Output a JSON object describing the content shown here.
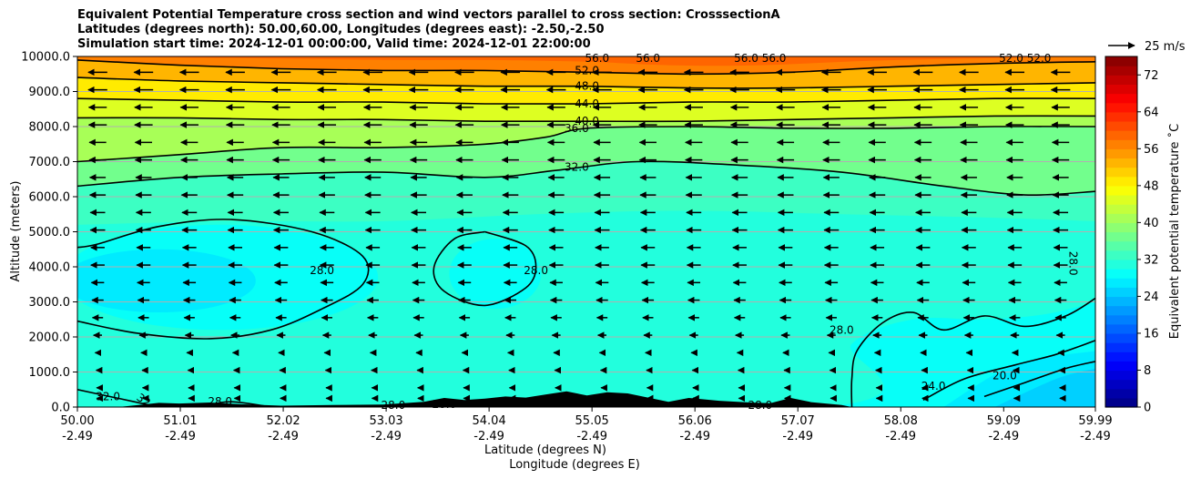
{
  "title_lines": [
    "Equivalent Potential Temperature cross section and wind vectors parallel to cross section: CrosssectionA",
    "Latitudes (degrees north): 50.00,60.00, Longitudes (degrees east): -2.50,-2.50",
    "Simulation start time: 2024-12-01 00:00:00, Valid time: 2024-12-01 22:00:00"
  ],
  "chart_data": {
    "type": "heatmap",
    "xlabel": "Latitude (degrees N)",
    "xlabel2": "Longitude (degrees E)",
    "ylabel": "Altitude (meters)",
    "colorbar_label": "Equivalent potential temperature ˚C",
    "x_ticks": [
      {
        "lat": 50.0,
        "lat_label": "50.00",
        "lon_label": "-2.49"
      },
      {
        "lat": 51.01,
        "lat_label": "51.01",
        "lon_label": "-2.49"
      },
      {
        "lat": 52.02,
        "lat_label": "52.02",
        "lon_label": "-2.49"
      },
      {
        "lat": 53.03,
        "lat_label": "53.03",
        "lon_label": "-2.49"
      },
      {
        "lat": 54.04,
        "lat_label": "54.04",
        "lon_label": "-2.49"
      },
      {
        "lat": 55.05,
        "lat_label": "55.05",
        "lon_label": "-2.49"
      },
      {
        "lat": 56.06,
        "lat_label": "56.06",
        "lon_label": "-2.49"
      },
      {
        "lat": 57.07,
        "lat_label": "57.07",
        "lon_label": "-2.49"
      },
      {
        "lat": 58.08,
        "lat_label": "58.08",
        "lon_label": "-2.49"
      },
      {
        "lat": 59.09,
        "lat_label": "59.09",
        "lon_label": "-2.49"
      },
      {
        "lat": 59.99,
        "lat_label": "59.99",
        "lon_label": "-2.49"
      }
    ],
    "xlim": [
      50.0,
      59.99
    ],
    "y_ticks": [
      0,
      1000,
      2000,
      3000,
      4000,
      5000,
      6000,
      7000,
      8000,
      9000,
      10000
    ],
    "y_tick_labels": [
      "0.0",
      "1000.0",
      "2000.0",
      "3000.0",
      "4000.0",
      "5000.0",
      "6000.0",
      "7000.0",
      "8000.0",
      "9000.0",
      "10000.0"
    ],
    "ylim": [
      0,
      10000
    ],
    "grid": "horizontal",
    "colorbar": {
      "min": 0,
      "max": 76,
      "step": 2,
      "ticks": [
        0,
        8,
        16,
        24,
        32,
        40,
        48,
        56,
        64,
        72
      ],
      "colormap": "jet"
    },
    "fill_bands": [
      {
        "level": 56,
        "lat": [
          50.0,
          51.6,
          53.2,
          54.0,
          55.0,
          55.8,
          56.7,
          57.8,
          59.0,
          59.99
        ],
        "alt": [
          10000,
          9950,
          9900,
          9900,
          9850,
          9750,
          9750,
          9880,
          9950,
          10000
        ]
      },
      {
        "level": 52,
        "lat": [
          50.0,
          51.0,
          52.0,
          53.0,
          54.0,
          55.0,
          56.0,
          57.0,
          58.0,
          59.0,
          59.99
        ],
        "alt": [
          9900,
          9750,
          9650,
          9600,
          9600,
          9550,
          9500,
          9550,
          9700,
          9800,
          9850
        ]
      },
      {
        "level": 48,
        "lat": [
          50.0,
          51.0,
          52.0,
          53.0,
          54.0,
          55.0,
          56.0,
          57.0,
          58.0,
          59.0,
          59.99
        ],
        "alt": [
          9400,
          9300,
          9250,
          9200,
          9150,
          9150,
          9100,
          9100,
          9150,
          9200,
          9250
        ]
      },
      {
        "level": 44,
        "lat": [
          50.0,
          51.0,
          52.0,
          53.0,
          54.0,
          55.0,
          56.0,
          57.0,
          58.0,
          59.0,
          59.99
        ],
        "alt": [
          8800,
          8750,
          8700,
          8700,
          8650,
          8650,
          8700,
          8700,
          8750,
          8800,
          8800
        ]
      },
      {
        "level": 40,
        "lat": [
          50.0,
          51.0,
          52.0,
          53.0,
          54.0,
          55.0,
          56.0,
          57.0,
          58.0,
          59.0,
          59.99
        ],
        "alt": [
          8250,
          8250,
          8200,
          8200,
          8150,
          8150,
          8150,
          8200,
          8250,
          8300,
          8300
        ]
      },
      {
        "level": 36,
        "lat": [
          50.0,
          51.0,
          52.0,
          53.0,
          54.0,
          54.6,
          55.0,
          56.0,
          57.0,
          58.0,
          59.0,
          59.99
        ],
        "alt": [
          7000,
          7200,
          7400,
          7400,
          7500,
          7700,
          7950,
          8000,
          7950,
          7950,
          8000,
          8000
        ]
      },
      {
        "level": 32,
        "lat": [
          50.0,
          51.0,
          52.0,
          53.0,
          54.0,
          54.7,
          55.5,
          56.5,
          57.5,
          58.5,
          59.3,
          59.99
        ],
        "alt": [
          6300,
          6550,
          6650,
          6700,
          6550,
          6750,
          7000,
          6900,
          6700,
          6300,
          6050,
          6150
        ]
      },
      {
        "level": 30,
        "lat": [
          50.0,
          51.5,
          53.0,
          54.5,
          56.0,
          57.5,
          59.0,
          59.99
        ],
        "alt": [
          5200,
          5300,
          5300,
          5500,
          5600,
          5500,
          5400,
          5300
        ]
      },
      {
        "level": 28,
        "lat": [
          50.0,
          57.3,
          57.6,
          58.2,
          58.9,
          59.5,
          59.99
        ],
        "alt": [
          0,
          0,
          1800,
          2500,
          2500,
          2650,
          3000
        ]
      },
      {
        "level": 26,
        "lat": [
          58.5,
          59.2,
          59.99
        ],
        "alt": [
          0,
          1200,
          1600
        ]
      },
      {
        "level": 24,
        "lat": [
          59.0,
          59.6,
          59.99
        ],
        "alt": [
          0,
          800,
          1100
        ]
      }
    ],
    "fill_patches": [
      {
        "level": 28,
        "center_lat": 51.4,
        "center_alt": 3700,
        "rx_lat": 1.55,
        "ry_alt": 1500
      },
      {
        "level": 26,
        "center_lat": 50.8,
        "center_alt": 3600,
        "rx_lat": 0.95,
        "ry_alt": 900
      },
      {
        "level": 28,
        "center_lat": 54.1,
        "center_alt": 3800,
        "rx_lat": 0.45,
        "ry_alt": 1000
      }
    ],
    "contours": [
      {
        "level": 52.0,
        "label": "52.0",
        "label_at": [
          55.0,
          9600
        ],
        "lat": [
          50.0,
          51.0,
          52.0,
          53.0,
          54.0,
          55.0,
          56.0,
          57.0,
          58.0,
          59.0,
          59.99
        ],
        "alt": [
          9900,
          9750,
          9650,
          9600,
          9600,
          9550,
          9500,
          9550,
          9700,
          9800,
          9850
        ]
      },
      {
        "level": 48.0,
        "label": "48.0",
        "label_at": [
          55.0,
          9150
        ],
        "lat": [
          50.0,
          51.0,
          52.0,
          53.0,
          54.0,
          55.0,
          56.0,
          57.0,
          58.0,
          59.0,
          59.99
        ],
        "alt": [
          9400,
          9300,
          9250,
          9200,
          9150,
          9150,
          9100,
          9100,
          9150,
          9200,
          9250
        ]
      },
      {
        "level": 44.0,
        "label": "44.0",
        "label_at": [
          55.0,
          8650
        ],
        "lat": [
          50.0,
          51.0,
          52.0,
          53.0,
          54.0,
          55.0,
          56.0,
          57.0,
          58.0,
          59.0,
          59.99
        ],
        "alt": [
          8800,
          8750,
          8700,
          8700,
          8650,
          8650,
          8700,
          8700,
          8750,
          8800,
          8800
        ]
      },
      {
        "level": 40.0,
        "label": "40.0",
        "label_at": [
          55.0,
          8150
        ],
        "lat": [
          50.0,
          51.0,
          52.0,
          53.0,
          54.0,
          55.0,
          56.0,
          57.0,
          58.0,
          59.0,
          59.99
        ],
        "alt": [
          8250,
          8250,
          8200,
          8200,
          8150,
          8150,
          8150,
          8200,
          8250,
          8300,
          8300
        ]
      },
      {
        "level": 36.0,
        "label": "36.0",
        "label_at": [
          54.9,
          7950
        ],
        "lat": [
          50.0,
          51.0,
          52.0,
          53.0,
          54.0,
          54.6,
          55.0,
          56.0,
          57.0,
          58.0,
          59.0,
          59.99
        ],
        "alt": [
          7000,
          7200,
          7400,
          7400,
          7500,
          7700,
          7950,
          8000,
          7950,
          7950,
          8000,
          8000
        ]
      },
      {
        "level": 32.0,
        "label": "32.0",
        "label_at": [
          54.9,
          6850
        ],
        "lat": [
          50.0,
          51.0,
          52.0,
          53.0,
          54.0,
          54.7,
          55.5,
          56.5,
          57.5,
          58.5,
          59.3,
          59.99
        ],
        "alt": [
          6300,
          6550,
          6650,
          6700,
          6550,
          6750,
          7000,
          6900,
          6700,
          6300,
          6050,
          6150
        ]
      },
      {
        "level": 28.0,
        "label": "28.0",
        "label_at": [
          52.4,
          3900
        ],
        "lat": [
          50.0,
          50.6,
          51.3,
          51.9,
          52.4,
          52.8,
          52.8,
          52.3,
          51.5,
          50.8,
          50.2,
          50.0
        ],
        "alt": [
          2450,
          2100,
          1950,
          2200,
          2800,
          3500,
          4300,
          5000,
          5350,
          5150,
          4650,
          4550
        ]
      },
      {
        "level": 28.0,
        "label": "28.0",
        "label_at": [
          54.5,
          3900
        ],
        "lat": [
          54.0,
          54.4,
          54.5,
          54.4,
          54.0,
          53.6,
          53.5,
          53.7,
          54.0
        ],
        "alt": [
          5000,
          4600,
          4000,
          3400,
          2900,
          3300,
          4000,
          4800,
          5000
        ]
      },
      {
        "level": 28.0,
        "label": "28.0",
        "label_at": [
          57.5,
          2200
        ],
        "lat": [
          57.6,
          57.6,
          57.65,
          57.9,
          58.2,
          58.5,
          58.9,
          59.3,
          59.7,
          59.99
        ],
        "alt": [
          0,
          800,
          1600,
          2400,
          2700,
          2200,
          2600,
          2300,
          2600,
          3100
        ]
      },
      {
        "level": 24.0,
        "label": "24.0",
        "label_at": [
          58.4,
          600
        ],
        "lat": [
          58.3,
          58.7,
          59.2,
          59.6,
          59.99
        ],
        "alt": [
          200,
          800,
          1200,
          1500,
          1900
        ]
      },
      {
        "level": 20.0,
        "label": "20.0",
        "label_at": [
          59.1,
          900
        ],
        "lat": [
          58.9,
          59.3,
          59.7,
          59.99
        ],
        "alt": [
          300,
          700,
          1100,
          1300
        ]
      },
      {
        "level": 32.0,
        "label": "32.0",
        "label_at": [
          50.3,
          300
        ],
        "lat": [
          50.0,
          50.4,
          50.8
        ],
        "alt": [
          500,
          250,
          0
        ]
      },
      {
        "level": 28.0,
        "label": "28.0",
        "label_at": [
          51.4,
          150
        ],
        "lat": [
          51.2,
          51.5,
          51.9
        ],
        "alt": [
          0,
          150,
          0
        ]
      }
    ],
    "extra_contour_labels": [
      {
        "label": "56.0",
        "lat": 55.1,
        "alt": 9950,
        "rotate": 0
      },
      {
        "label": "56.0",
        "lat": 55.6,
        "alt": 9950,
        "rotate": 0
      },
      {
        "label": "56.0 56.0",
        "lat": 56.7,
        "alt": 9950,
        "rotate": 0
      },
      {
        "label": "52.0 52.0",
        "lat": 59.3,
        "alt": 9950,
        "rotate": 0
      },
      {
        "label": "28.0",
        "lat": 59.77,
        "alt": 4100,
        "rotate": 90
      },
      {
        "label": "32",
        "lat": 50.65,
        "alt": 200,
        "rotate": 35
      },
      {
        "label": "28.0",
        "lat": 53.1,
        "alt": 50,
        "rotate": 0
      },
      {
        "label": "28.0",
        "lat": 53.6,
        "alt": 80,
        "rotate": 0
      },
      {
        "label": "28.0",
        "lat": 56.7,
        "alt": 50,
        "rotate": 0
      }
    ],
    "terrain": {
      "lat": [
        50.0,
        50.4,
        50.6,
        50.8,
        51.0,
        51.3,
        51.6,
        52.0,
        52.5,
        53.0,
        53.4,
        53.6,
        53.8,
        54.0,
        54.2,
        54.4,
        54.6,
        54.8,
        55.0,
        55.2,
        55.4,
        55.6,
        55.8,
        56.0,
        56.3,
        56.6,
        56.8,
        57.0,
        57.2,
        57.5,
        57.6
      ],
      "alt": [
        0,
        0,
        60,
        120,
        100,
        130,
        80,
        40,
        60,
        70,
        150,
        260,
        200,
        240,
        300,
        270,
        360,
        450,
        330,
        420,
        390,
        270,
        150,
        260,
        180,
        130,
        110,
        260,
        140,
        60,
        0
      ]
    },
    "wind": {
      "speed_ms": 25,
      "key_label": "25 m/s",
      "direction": "toward decreasing latitude",
      "column_lats": [
        50.2,
        50.65,
        51.1,
        51.55,
        52.0,
        52.45,
        52.9,
        53.35,
        53.8,
        54.25,
        54.7,
        55.15,
        55.6,
        56.05,
        56.5,
        56.95,
        57.4,
        57.85,
        58.3,
        58.75,
        59.2,
        59.65
      ],
      "row_alts": [
        250,
        550,
        1050,
        1550,
        2050,
        2550,
        3050,
        3550,
        4050,
        4550,
        5050,
        5550,
        6050,
        6550,
        7050,
        7550,
        8050,
        8550,
        9050,
        9550
      ],
      "speed_by_row_ms": [
        1,
        2,
        3,
        5,
        8,
        10,
        11,
        12,
        13,
        13,
        14,
        14,
        15,
        15,
        16,
        16,
        17,
        17,
        18,
        18
      ]
    }
  }
}
